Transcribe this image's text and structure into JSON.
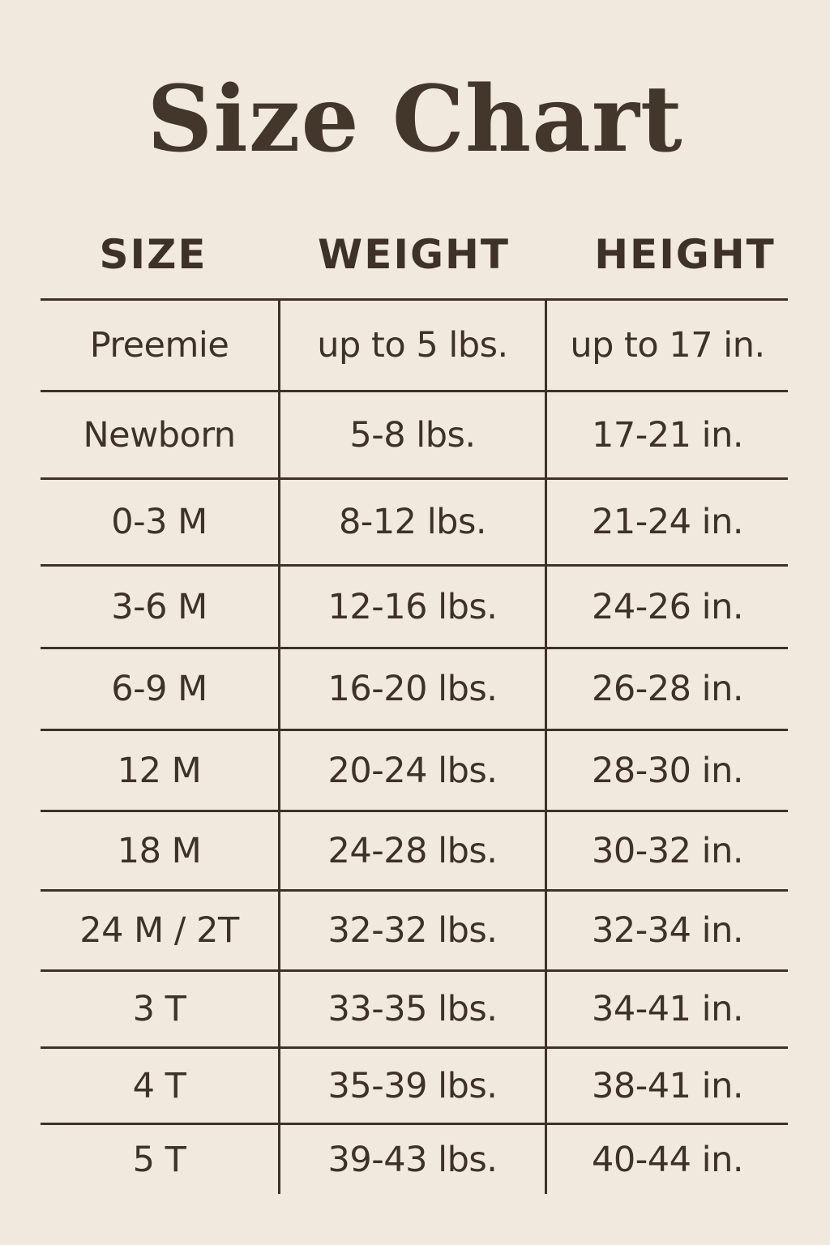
{
  "title": "Size Chart",
  "headers": [
    "SIZE",
    "WEIGHT",
    "HEIGHT"
  ],
  "rows": [
    [
      "Preemie",
      "up to 5 lbs.",
      "up to 17 in."
    ],
    [
      "Newborn",
      "5-8 lbs.",
      "17-21 in."
    ],
    [
      "0-3 M",
      "8-12 lbs.",
      "21-24 in."
    ],
    [
      "3-6 M",
      "12-16 lbs.",
      "24-26 in."
    ],
    [
      "6-9 M",
      "16-20 lbs.",
      "26-28 in."
    ],
    [
      "12 M",
      "20-24 lbs.",
      "28-30 in."
    ],
    [
      "18 M",
      "24-28 lbs.",
      "30-32 in."
    ],
    [
      "24 M / 2T",
      "32-32 lbs.",
      "32-34 in."
    ],
    [
      "3 T",
      "33-35 lbs.",
      "34-41 in."
    ],
    [
      "4 T",
      "35-39 lbs.",
      "38-41 in."
    ],
    [
      "5 T",
      "39-43 lbs.",
      "40-44 in."
    ]
  ],
  "colors": {
    "background": "#f1e9de",
    "text": "#3e3228"
  }
}
